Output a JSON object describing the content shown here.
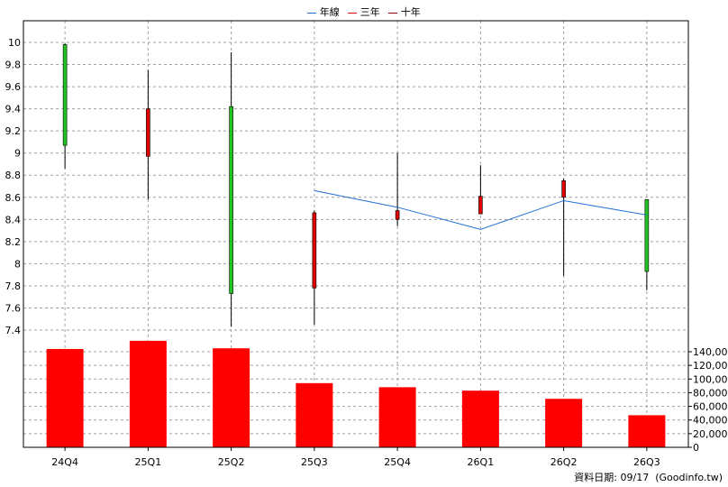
{
  "legend": [
    {
      "label": "年線",
      "color": "#1f6fd6"
    },
    {
      "label": "三年",
      "color": "#e00000"
    },
    {
      "label": "十年",
      "color": "#8b0000"
    }
  ],
  "footer": "資料日期: 09/17  (Goodinfo.tw)",
  "chart_data": [
    {
      "type": "candlestick",
      "categories": [
        "24Q4",
        "25Q1",
        "25Q2",
        "25Q3",
        "25Q4",
        "26Q1",
        "26Q2",
        "26Q3"
      ],
      "ohlc": [
        {
          "open": 9.07,
          "high": 9.99,
          "low": 8.86,
          "close": 9.98
        },
        {
          "open": 9.4,
          "high": 9.75,
          "low": 8.58,
          "close": 8.97
        },
        {
          "open": 7.73,
          "high": 9.91,
          "low": 7.43,
          "close": 9.42
        },
        {
          "open": 8.46,
          "high": 8.48,
          "low": 7.45,
          "close": 7.78
        },
        {
          "open": 8.48,
          "high": 9.0,
          "low": 8.34,
          "close": 8.4
        },
        {
          "open": 8.61,
          "high": 8.89,
          "low": 8.45,
          "close": 8.45
        },
        {
          "open": 8.75,
          "high": 8.77,
          "low": 7.89,
          "close": 8.6
        },
        {
          "open": 7.93,
          "high": 8.58,
          "low": 7.76,
          "close": 8.58
        }
      ],
      "line_series": {
        "name": "年線",
        "values": [
          null,
          null,
          null,
          8.66,
          8.51,
          8.31,
          8.57,
          8.44
        ]
      },
      "yticks": [
        7.4,
        7.6,
        7.8,
        8,
        8.2,
        8.4,
        8.6,
        8.8,
        9,
        9.2,
        9.4,
        9.6,
        9.8,
        10
      ],
      "ylim": [
        7.24,
        10.16
      ],
      "up_color": "#22c422",
      "down_color": "#e00000",
      "grid": true
    },
    {
      "type": "bar",
      "categories": [
        "24Q4",
        "25Q1",
        "25Q2",
        "25Q3",
        "25Q4",
        "26Q1",
        "26Q2",
        "26Q3"
      ],
      "values": [
        144000,
        156000,
        145000,
        94000,
        88000,
        83000,
        71000,
        47000
      ],
      "yticks": [
        0,
        20000,
        40000,
        60000,
        80000,
        100000,
        120000,
        140000
      ],
      "ytick_labels": [
        "0",
        "20,000",
        "40,000",
        "60,000",
        "80,000",
        "100,000",
        "120,000",
        "140,000"
      ],
      "ylim": [
        0,
        155500
      ],
      "color": "#ff0000",
      "grid": true
    }
  ]
}
